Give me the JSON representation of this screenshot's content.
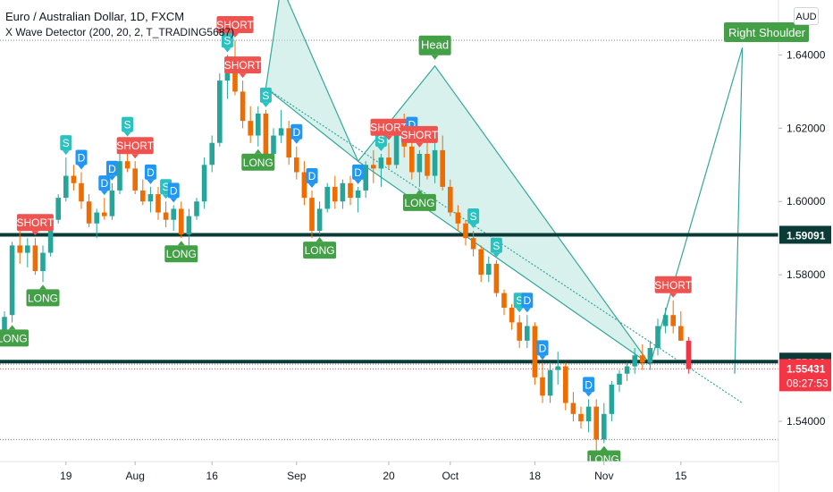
{
  "header": {
    "symbol_title": "Euro / Australian Dollar, 1D, FXCM",
    "indicator_title": "X Wave Detector (200, 20, 2, T_TRADING5687)",
    "currency_button": "AUD"
  },
  "chart_data": {
    "type": "candlestick",
    "ylim": [
      1.529,
      1.655
    ],
    "y_ticks": [
      {
        "value": 1.64,
        "label": "1.64000"
      },
      {
        "value": 1.62,
        "label": "1.62000"
      },
      {
        "value": 1.6,
        "label": "1.60000"
      },
      {
        "value": 1.58,
        "label": "1.58000"
      },
      {
        "value": 1.54,
        "label": "1.54000"
      }
    ],
    "x_ticks": [
      {
        "index": 8,
        "label": "19"
      },
      {
        "index": 17,
        "label": "Aug"
      },
      {
        "index": 27,
        "label": "16"
      },
      {
        "index": 38,
        "label": "Sep"
      },
      {
        "index": 50,
        "label": "20"
      },
      {
        "index": 58,
        "label": "Oct"
      },
      {
        "index": 69,
        "label": "18"
      },
      {
        "index": 78,
        "label": "Nov"
      },
      {
        "index": 88,
        "label": "15"
      }
    ],
    "candles": [
      {
        "o": 1.564,
        "h": 1.57,
        "l": 1.563,
        "c": 1.5685
      },
      {
        "o": 1.569,
        "h": 1.589,
        "l": 1.567,
        "c": 1.588
      },
      {
        "o": 1.588,
        "h": 1.592,
        "l": 1.583,
        "c": 1.586
      },
      {
        "o": 1.586,
        "h": 1.59,
        "l": 1.582,
        "c": 1.588
      },
      {
        "o": 1.588,
        "h": 1.59,
        "l": 1.58,
        "c": 1.581
      },
      {
        "o": 1.581,
        "h": 1.588,
        "l": 1.578,
        "c": 1.586
      },
      {
        "o": 1.586,
        "h": 1.596,
        "l": 1.585,
        "c": 1.595
      },
      {
        "o": 1.595,
        "h": 1.602,
        "l": 1.594,
        "c": 1.601
      },
      {
        "o": 1.601,
        "h": 1.612,
        "l": 1.6,
        "c": 1.607
      },
      {
        "o": 1.607,
        "h": 1.61,
        "l": 1.603,
        "c": 1.605
      },
      {
        "o": 1.605,
        "h": 1.608,
        "l": 1.598,
        "c": 1.6
      },
      {
        "o": 1.6,
        "h": 1.602,
        "l": 1.593,
        "c": 1.594
      },
      {
        "o": 1.594,
        "h": 1.598,
        "l": 1.59,
        "c": 1.597
      },
      {
        "o": 1.597,
        "h": 1.601,
        "l": 1.595,
        "c": 1.596
      },
      {
        "o": 1.596,
        "h": 1.605,
        "l": 1.595,
        "c": 1.603
      },
      {
        "o": 1.603,
        "h": 1.613,
        "l": 1.602,
        "c": 1.611
      },
      {
        "o": 1.611,
        "h": 1.617,
        "l": 1.608,
        "c": 1.609
      },
      {
        "o": 1.609,
        "h": 1.611,
        "l": 1.602,
        "c": 1.603
      },
      {
        "o": 1.603,
        "h": 1.606,
        "l": 1.599,
        "c": 1.6
      },
      {
        "o": 1.6,
        "h": 1.604,
        "l": 1.597,
        "c": 1.602
      },
      {
        "o": 1.602,
        "h": 1.604,
        "l": 1.595,
        "c": 1.597
      },
      {
        "o": 1.597,
        "h": 1.6,
        "l": 1.593,
        "c": 1.595
      },
      {
        "o": 1.595,
        "h": 1.599,
        "l": 1.592,
        "c": 1.598
      },
      {
        "o": 1.598,
        "h": 1.6,
        "l": 1.59,
        "c": 1.591
      },
      {
        "o": 1.591,
        "h": 1.598,
        "l": 1.588,
        "c": 1.596
      },
      {
        "o": 1.596,
        "h": 1.601,
        "l": 1.595,
        "c": 1.6
      },
      {
        "o": 1.6,
        "h": 1.612,
        "l": 1.598,
        "c": 1.61
      },
      {
        "o": 1.61,
        "h": 1.618,
        "l": 1.608,
        "c": 1.616
      },
      {
        "o": 1.616,
        "h": 1.635,
        "l": 1.615,
        "c": 1.633
      },
      {
        "o": 1.633,
        "h": 1.64,
        "l": 1.628,
        "c": 1.638
      },
      {
        "o": 1.638,
        "h": 1.644,
        "l": 1.629,
        "c": 1.63
      },
      {
        "o": 1.63,
        "h": 1.633,
        "l": 1.62,
        "c": 1.622
      },
      {
        "o": 1.622,
        "h": 1.626,
        "l": 1.616,
        "c": 1.618
      },
      {
        "o": 1.618,
        "h": 1.626,
        "l": 1.615,
        "c": 1.624
      },
      {
        "o": 1.624,
        "h": 1.625,
        "l": 1.611,
        "c": 1.613
      },
      {
        "o": 1.613,
        "h": 1.62,
        "l": 1.609,
        "c": 1.618
      },
      {
        "o": 1.618,
        "h": 1.625,
        "l": 1.616,
        "c": 1.62
      },
      {
        "o": 1.62,
        "h": 1.622,
        "l": 1.61,
        "c": 1.612
      },
      {
        "o": 1.612,
        "h": 1.615,
        "l": 1.606,
        "c": 1.608
      },
      {
        "o": 1.608,
        "h": 1.611,
        "l": 1.599,
        "c": 1.601
      },
      {
        "o": 1.601,
        "h": 1.603,
        "l": 1.59,
        "c": 1.592
      },
      {
        "o": 1.592,
        "h": 1.6,
        "l": 1.591,
        "c": 1.598
      },
      {
        "o": 1.598,
        "h": 1.605,
        "l": 1.597,
        "c": 1.604
      },
      {
        "o": 1.604,
        "h": 1.607,
        "l": 1.598,
        "c": 1.6
      },
      {
        "o": 1.6,
        "h": 1.606,
        "l": 1.598,
        "c": 1.605
      },
      {
        "o": 1.605,
        "h": 1.607,
        "l": 1.599,
        "c": 1.601
      },
      {
        "o": 1.601,
        "h": 1.604,
        "l": 1.597,
        "c": 1.603
      },
      {
        "o": 1.603,
        "h": 1.611,
        "l": 1.601,
        "c": 1.61
      },
      {
        "o": 1.61,
        "h": 1.614,
        "l": 1.605,
        "c": 1.609
      },
      {
        "o": 1.609,
        "h": 1.613,
        "l": 1.604,
        "c": 1.612
      },
      {
        "o": 1.612,
        "h": 1.616,
        "l": 1.609,
        "c": 1.61
      },
      {
        "o": 1.61,
        "h": 1.621,
        "l": 1.609,
        "c": 1.619
      },
      {
        "o": 1.619,
        "h": 1.624,
        "l": 1.612,
        "c": 1.615
      },
      {
        "o": 1.615,
        "h": 1.617,
        "l": 1.606,
        "c": 1.608
      },
      {
        "o": 1.608,
        "h": 1.614,
        "l": 1.604,
        "c": 1.613
      },
      {
        "o": 1.613,
        "h": 1.62,
        "l": 1.606,
        "c": 1.607
      },
      {
        "o": 1.607,
        "h": 1.616,
        "l": 1.605,
        "c": 1.614
      },
      {
        "o": 1.614,
        "h": 1.618,
        "l": 1.603,
        "c": 1.604
      },
      {
        "o": 1.604,
        "h": 1.606,
        "l": 1.596,
        "c": 1.597
      },
      {
        "o": 1.597,
        "h": 1.599,
        "l": 1.592,
        "c": 1.594
      },
      {
        "o": 1.594,
        "h": 1.595,
        "l": 1.588,
        "c": 1.59
      },
      {
        "o": 1.59,
        "h": 1.592,
        "l": 1.585,
        "c": 1.587
      },
      {
        "o": 1.587,
        "h": 1.588,
        "l": 1.578,
        "c": 1.58
      },
      {
        "o": 1.58,
        "h": 1.585,
        "l": 1.578,
        "c": 1.583
      },
      {
        "o": 1.583,
        "h": 1.584,
        "l": 1.574,
        "c": 1.575
      },
      {
        "o": 1.575,
        "h": 1.576,
        "l": 1.569,
        "c": 1.571
      },
      {
        "o": 1.571,
        "h": 1.572,
        "l": 1.565,
        "c": 1.567
      },
      {
        "o": 1.567,
        "h": 1.569,
        "l": 1.56,
        "c": 1.562
      },
      {
        "o": 1.562,
        "h": 1.569,
        "l": 1.56,
        "c": 1.566
      },
      {
        "o": 1.566,
        "h": 1.567,
        "l": 1.55,
        "c": 1.552
      },
      {
        "o": 1.552,
        "h": 1.556,
        "l": 1.545,
        "c": 1.547
      },
      {
        "o": 1.547,
        "h": 1.556,
        "l": 1.545,
        "c": 1.554
      },
      {
        "o": 1.554,
        "h": 1.559,
        "l": 1.55,
        "c": 1.555
      },
      {
        "o": 1.555,
        "h": 1.556,
        "l": 1.543,
        "c": 1.545
      },
      {
        "o": 1.545,
        "h": 1.548,
        "l": 1.54,
        "c": 1.542
      },
      {
        "o": 1.542,
        "h": 1.544,
        "l": 1.538,
        "c": 1.54
      },
      {
        "o": 1.54,
        "h": 1.546,
        "l": 1.537,
        "c": 1.544
      },
      {
        "o": 1.544,
        "h": 1.546,
        "l": 1.532,
        "c": 1.535
      },
      {
        "o": 1.535,
        "h": 1.545,
        "l": 1.534,
        "c": 1.542
      },
      {
        "o": 1.542,
        "h": 1.551,
        "l": 1.54,
        "c": 1.55
      },
      {
        "o": 1.55,
        "h": 1.554,
        "l": 1.548,
        "c": 1.553
      },
      {
        "o": 1.553,
        "h": 1.556,
        "l": 1.551,
        "c": 1.555
      },
      {
        "o": 1.555,
        "h": 1.56,
        "l": 1.553,
        "c": 1.558
      },
      {
        "o": 1.558,
        "h": 1.561,
        "l": 1.554,
        "c": 1.556
      },
      {
        "o": 1.556,
        "h": 1.562,
        "l": 1.554,
        "c": 1.56
      },
      {
        "o": 1.56,
        "h": 1.568,
        "l": 1.558,
        "c": 1.566
      },
      {
        "o": 1.566,
        "h": 1.571,
        "l": 1.564,
        "c": 1.569
      },
      {
        "o": 1.569,
        "h": 1.573,
        "l": 1.564,
        "c": 1.566
      },
      {
        "o": 1.566,
        "h": 1.57,
        "l": 1.562,
        "c": 1.562
      },
      {
        "o": 1.562,
        "h": 1.563,
        "l": 1.553,
        "c": 1.5543
      }
    ],
    "signals": [
      {
        "index": 1,
        "type": "LONG"
      },
      {
        "index": 4,
        "type": "SHORT"
      },
      {
        "index": 5,
        "type": "LONG"
      },
      {
        "index": 8,
        "type": "S"
      },
      {
        "index": 10,
        "type": "D"
      },
      {
        "index": 13,
        "type": "D"
      },
      {
        "index": 14,
        "type": "D"
      },
      {
        "index": 16,
        "type": "S"
      },
      {
        "index": 17,
        "type": "SHORT"
      },
      {
        "index": 19,
        "type": "D"
      },
      {
        "index": 21,
        "type": "S"
      },
      {
        "index": 22,
        "type": "D"
      },
      {
        "index": 23,
        "type": "LONG"
      },
      {
        "index": 29,
        "type": "S"
      },
      {
        "index": 31,
        "type": "SHORT"
      },
      {
        "index": 30,
        "type": "SHORT"
      },
      {
        "index": 33,
        "type": "LONG"
      },
      {
        "index": 34,
        "type": "S"
      },
      {
        "index": 38,
        "type": "D"
      },
      {
        "index": 40,
        "type": "D"
      },
      {
        "index": 41,
        "type": "LONG"
      },
      {
        "index": 46,
        "type": "D"
      },
      {
        "index": 49,
        "type": "S"
      },
      {
        "index": 50,
        "type": "SHORT"
      },
      {
        "index": 53,
        "type": "D"
      },
      {
        "index": 54,
        "type": "SHORT"
      },
      {
        "index": 54,
        "type": "LONG"
      },
      {
        "index": 61,
        "type": "S"
      },
      {
        "index": 64,
        "type": "S"
      },
      {
        "index": 67,
        "type": "S"
      },
      {
        "index": 68,
        "type": "D"
      },
      {
        "index": 70,
        "type": "D"
      },
      {
        "index": 76,
        "type": "D"
      },
      {
        "index": 78,
        "type": "LONG"
      },
      {
        "index": 87,
        "type": "SHORT"
      }
    ],
    "horizontal_levels": [
      {
        "value": 1.59091,
        "label": "1.59091"
      },
      {
        "value": 1.55628,
        "label": "1.55628"
      }
    ],
    "dotted_guide_levels": [
      1.644,
      1.5556,
      1.535
    ],
    "last_price": {
      "value": 1.55431,
      "label": "1.55431",
      "countdown": "08:27:53"
    },
    "pattern": {
      "head_label": "Head",
      "right_shoulder_label": "Right Shoulder",
      "triangle_1": [
        {
          "index": 34,
          "value": 1.631
        },
        {
          "index": 36,
          "value": 1.659
        },
        {
          "index": 46,
          "value": 1.611
        }
      ],
      "triangle_2": [
        {
          "index": 46,
          "value": 1.611
        },
        {
          "index": 56,
          "value": 1.637
        },
        {
          "index": 84,
          "value": 1.5555
        }
      ],
      "triangle_3": [
        {
          "index": 84,
          "value": 1.5555
        },
        {
          "index": 96,
          "value": 1.642
        },
        {
          "index": 95,
          "value": 1.553
        }
      ],
      "neckline": [
        {
          "index": 34,
          "value": 1.631
        },
        {
          "index": 96,
          "value": 1.545
        }
      ]
    }
  },
  "colors": {
    "bull": "#26a69a",
    "bear": "#ef6c00",
    "bear_red": "#f23645",
    "signal_s": "#2ac1c1",
    "signal_d": "#2196f3",
    "signal_long": "#43a047",
    "signal_short": "#ef5350",
    "level_line": "#0b3b36",
    "pattern_line": "#35a69a",
    "pattern_fill": "#b8e6df"
  }
}
